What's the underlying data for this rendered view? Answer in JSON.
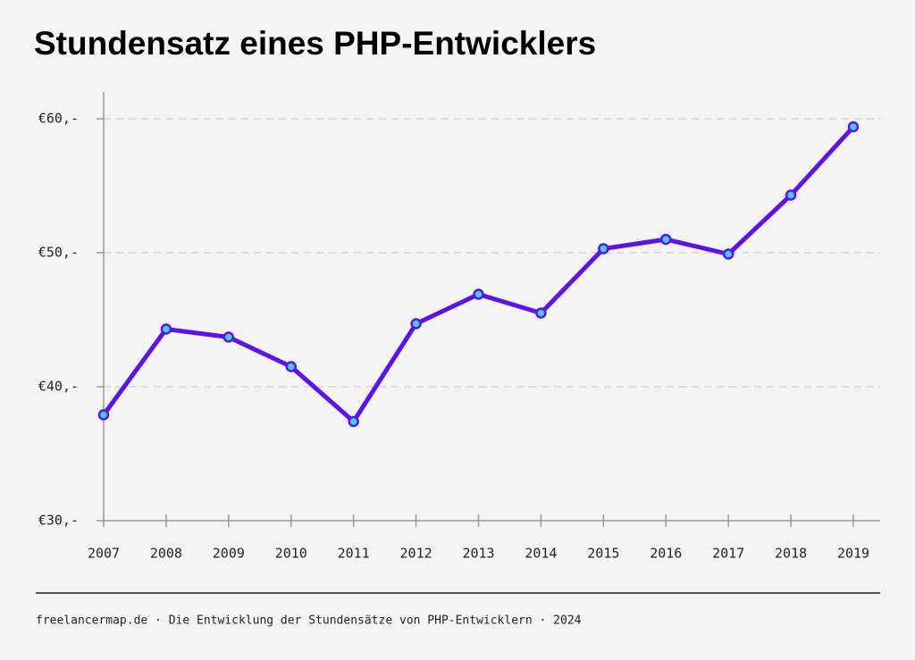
{
  "chart_data": {
    "type": "line",
    "title": "Stundensatz eines PHP-Entwicklers",
    "categories": [
      "2007",
      "2008",
      "2009",
      "2010",
      "2011",
      "2012",
      "2013",
      "2014",
      "2015",
      "2016",
      "2017",
      "2018",
      "2019"
    ],
    "values": [
      37.9,
      44.3,
      43.7,
      41.5,
      37.4,
      44.7,
      46.9,
      45.5,
      50.3,
      51.0,
      49.9,
      54.3,
      59.4
    ],
    "color": "#5a12f2",
    "marker_color": "#3fd0f5",
    "ylim": [
      30,
      62
    ],
    "yticks": [
      {
        "value": 30,
        "label": "€30,-"
      },
      {
        "value": 40,
        "label": "€40,-"
      },
      {
        "value": 50,
        "label": "€50,-"
      },
      {
        "value": 60,
        "label": "€60,-"
      }
    ],
    "grid": true,
    "caption": "freelancermap.de · Die Entwicklung der Stundensätze von PHP-Entwicklern · 2024"
  }
}
